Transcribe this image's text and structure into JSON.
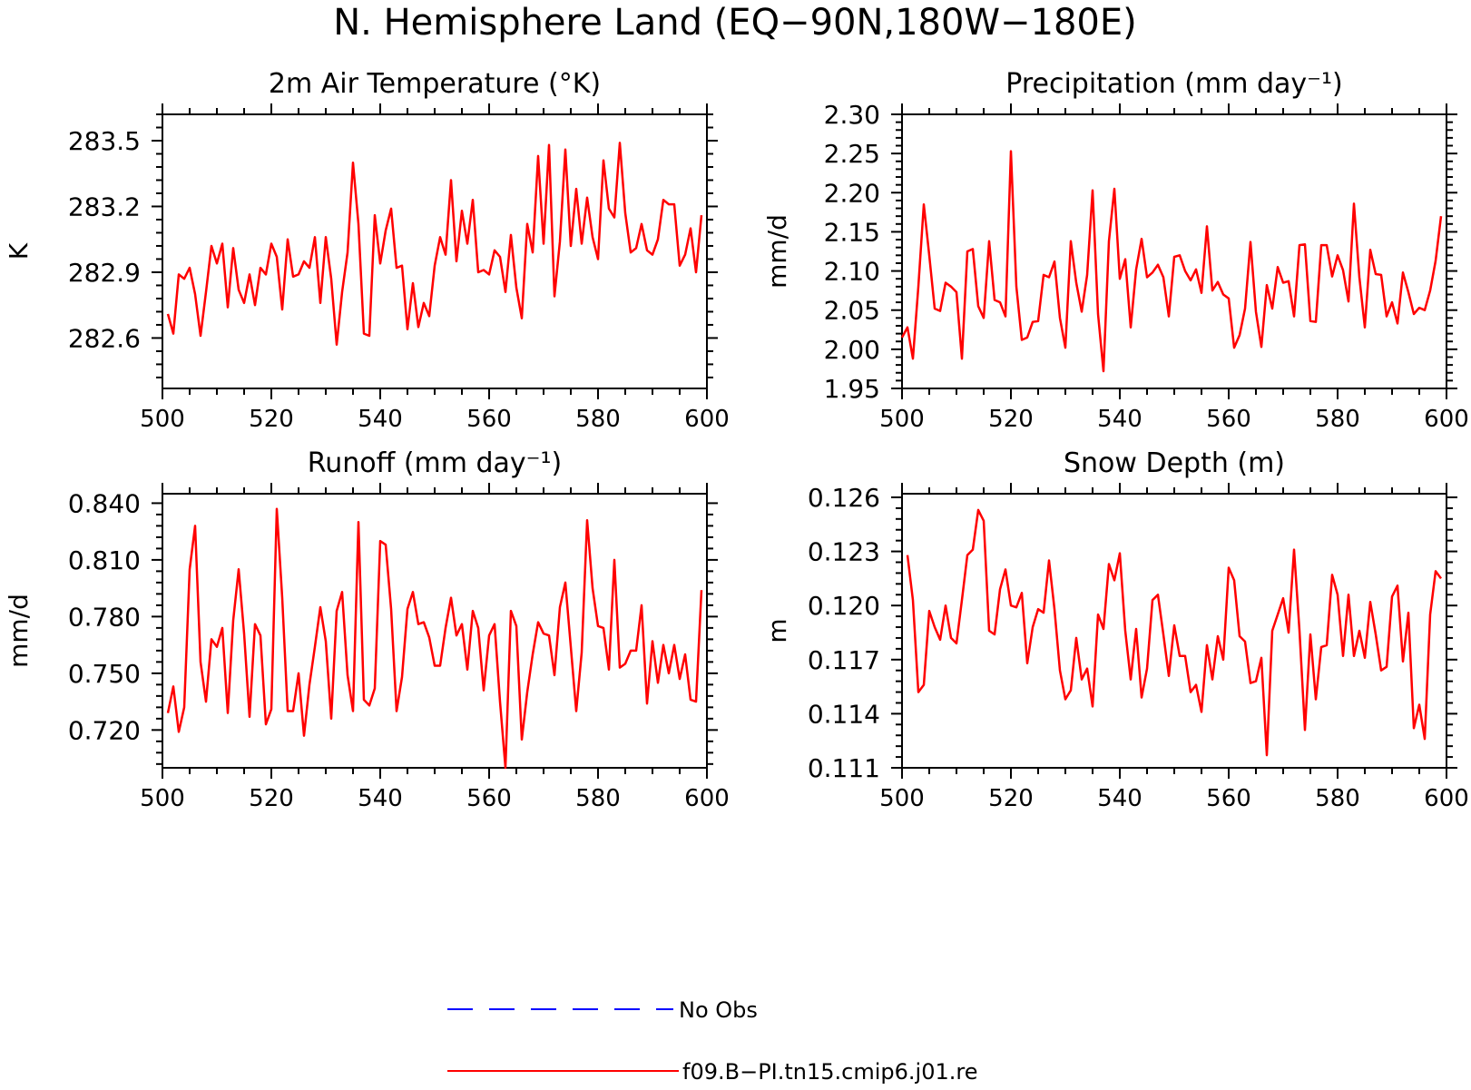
{
  "figure": {
    "title": "N. Hemisphere Land (EQ−90N,180W−180E)"
  },
  "legend": {
    "placement": "bottom-center",
    "entries": [
      {
        "label": "No Obs",
        "color": "#0000ff",
        "style": "dashed"
      },
      {
        "label": "f09.B−PI.tn15.cmip6.j01.re",
        "color": "#ff0000",
        "style": "solid"
      }
    ]
  },
  "colors": {
    "model_line": "#ff0000",
    "obs_line": "#0000ff",
    "frame": "#000000"
  },
  "chart_data": [
    {
      "type": "line",
      "title": "2m Air Temperature (°K)",
      "ylabel": "K",
      "xlim": [
        500,
        600
      ],
      "ylim": [
        282.37,
        283.62
      ],
      "xticks": [
        500,
        520,
        540,
        560,
        580,
        600
      ],
      "xtick_labels": [
        "500",
        "520",
        "540",
        "560",
        "580",
        "600"
      ],
      "yticks": [
        282.6,
        282.9,
        283.2,
        283.5
      ],
      "ytick_labels": [
        "282.6",
        "282.9",
        "283.2",
        "283.5"
      ],
      "x_start": 501,
      "series": [
        {
          "name": "f09.B−PI.tn15.cmip6.j01.re",
          "color": "#ff0000",
          "values": [
            282.71,
            282.62,
            282.89,
            282.87,
            282.92,
            282.8,
            282.61,
            282.81,
            283.02,
            282.94,
            283.03,
            282.74,
            283.01,
            282.82,
            282.76,
            282.89,
            282.75,
            282.92,
            282.89,
            283.03,
            282.97,
            282.73,
            283.05,
            282.88,
            282.89,
            282.95,
            282.92,
            283.06,
            282.76,
            283.06,
            282.87,
            282.57,
            282.81,
            282.99,
            283.4,
            283.12,
            282.62,
            282.61,
            283.16,
            282.94,
            283.09,
            283.19,
            282.92,
            282.93,
            282.64,
            282.85,
            282.65,
            282.76,
            282.7,
            282.93,
            283.06,
            282.98,
            283.32,
            282.95,
            283.18,
            283.03,
            283.23,
            282.9,
            282.91,
            282.89,
            283.0,
            282.97,
            282.81,
            283.07,
            282.83,
            282.69,
            283.12,
            282.99,
            283.43,
            283.03,
            283.48,
            282.79,
            283.04,
            283.46,
            283.02,
            283.28,
            283.03,
            283.24,
            283.06,
            282.96,
            283.41,
            283.19,
            283.15,
            283.49,
            283.17,
            282.99,
            283.01,
            283.12,
            283.0,
            282.98,
            283.05,
            283.23,
            283.21,
            283.21,
            282.93,
            282.98,
            283.1,
            282.9,
            283.16
          ]
        }
      ]
    },
    {
      "type": "line",
      "title": "Precipitation (mm day⁻¹)",
      "ylabel": "mm/d",
      "xlim": [
        500,
        600
      ],
      "ylim": [
        1.95,
        2.3
      ],
      "xticks": [
        500,
        520,
        540,
        560,
        580,
        600
      ],
      "xtick_labels": [
        "500",
        "520",
        "540",
        "560",
        "580",
        "600"
      ],
      "yticks": [
        1.95,
        2.0,
        2.05,
        2.1,
        2.15,
        2.2,
        2.25,
        2.3
      ],
      "ytick_labels": [
        "1.95",
        "2.00",
        "2.05",
        "2.10",
        "2.15",
        "2.20",
        "2.25",
        "2.30"
      ],
      "x_start": 500,
      "series": [
        {
          "name": "f09.B−PI.tn15.cmip6.j01.re",
          "color": "#ff0000",
          "values": [
            2.015,
            2.028,
            1.988,
            2.08,
            2.185,
            2.12,
            2.052,
            2.049,
            2.085,
            2.08,
            2.073,
            1.988,
            2.125,
            2.128,
            2.055,
            2.04,
            2.138,
            2.063,
            2.06,
            2.042,
            2.253,
            2.08,
            2.012,
            2.015,
            2.035,
            2.036,
            2.095,
            2.092,
            2.112,
            2.04,
            2.002,
            2.138,
            2.085,
            2.048,
            2.095,
            2.203,
            2.045,
            1.972,
            2.138,
            2.205,
            2.09,
            2.115,
            2.028,
            2.102,
            2.141,
            2.092,
            2.098,
            2.108,
            2.092,
            2.042,
            2.118,
            2.12,
            2.1,
            2.088,
            2.102,
            2.072,
            2.157,
            2.075,
            2.086,
            2.07,
            2.065,
            2.002,
            2.018,
            2.052,
            2.137,
            2.048,
            2.003,
            2.082,
            2.052,
            2.105,
            2.085,
            2.087,
            2.042,
            2.133,
            2.134,
            2.036,
            2.035,
            2.133,
            2.133,
            2.093,
            2.12,
            2.101,
            2.061,
            2.186,
            2.092,
            2.028,
            2.127,
            2.096,
            2.095,
            2.042,
            2.06,
            2.033,
            2.098,
            2.073,
            2.045,
            2.053,
            2.05,
            2.075,
            2.113,
            2.17
          ]
        }
      ]
    },
    {
      "type": "line",
      "title": "Runoff (mm day⁻¹)",
      "ylabel": "mm/d",
      "xlim": [
        500,
        600
      ],
      "ylim": [
        0.7,
        0.845
      ],
      "xticks": [
        500,
        520,
        540,
        560,
        580,
        600
      ],
      "xtick_labels": [
        "500",
        "520",
        "540",
        "560",
        "580",
        "600"
      ],
      "yticks": [
        0.72,
        0.75,
        0.78,
        0.81,
        0.84
      ],
      "ytick_labels": [
        "0.720",
        "0.750",
        "0.780",
        "0.810",
        "0.840"
      ],
      "x_start": 501,
      "series": [
        {
          "name": "f09.B−PI.tn15.cmip6.j01.re",
          "color": "#ff0000",
          "values": [
            0.729,
            0.743,
            0.719,
            0.732,
            0.805,
            0.828,
            0.756,
            0.735,
            0.768,
            0.764,
            0.774,
            0.729,
            0.778,
            0.805,
            0.771,
            0.727,
            0.776,
            0.77,
            0.723,
            0.731,
            0.837,
            0.79,
            0.73,
            0.73,
            0.75,
            0.717,
            0.744,
            0.764,
            0.785,
            0.767,
            0.726,
            0.783,
            0.793,
            0.749,
            0.73,
            0.83,
            0.736,
            0.733,
            0.742,
            0.82,
            0.818,
            0.784,
            0.73,
            0.748,
            0.784,
            0.793,
            0.776,
            0.777,
            0.769,
            0.754,
            0.754,
            0.774,
            0.79,
            0.77,
            0.776,
            0.752,
            0.783,
            0.774,
            0.741,
            0.77,
            0.776,
            0.735,
            0.7,
            0.783,
            0.775,
            0.715,
            0.74,
            0.76,
            0.777,
            0.771,
            0.77,
            0.749,
            0.785,
            0.798,
            0.764,
            0.73,
            0.761,
            0.831,
            0.795,
            0.775,
            0.774,
            0.752,
            0.81,
            0.753,
            0.755,
            0.762,
            0.762,
            0.786,
            0.734,
            0.767,
            0.745,
            0.765,
            0.75,
            0.765,
            0.747,
            0.76,
            0.736,
            0.735,
            0.794
          ]
        }
      ]
    },
    {
      "type": "line",
      "title": "Snow Depth (m)",
      "ylabel": "m",
      "xlim": [
        500,
        600
      ],
      "ylim": [
        0.111,
        0.1262
      ],
      "xticks": [
        500,
        520,
        540,
        560,
        580,
        600
      ],
      "xtick_labels": [
        "500",
        "520",
        "540",
        "560",
        "580",
        "600"
      ],
      "yticks": [
        0.111,
        0.114,
        0.117,
        0.12,
        0.123,
        0.126
      ],
      "ytick_labels": [
        "0.111",
        "0.114",
        "0.117",
        "0.120",
        "0.123",
        "0.126"
      ],
      "x_start": 501,
      "series": [
        {
          "name": "f09.B−PI.tn15.cmip6.j01.re",
          "color": "#ff0000",
          "values": [
            0.1228,
            0.1203,
            0.1152,
            0.1156,
            0.1197,
            0.1188,
            0.1181,
            0.12,
            0.1182,
            0.1179,
            0.1203,
            0.1228,
            0.1231,
            0.1253,
            0.1247,
            0.1186,
            0.1184,
            0.1209,
            0.122,
            0.12,
            0.1199,
            0.1207,
            0.1168,
            0.1188,
            0.1198,
            0.1196,
            0.1225,
            0.1198,
            0.1164,
            0.1148,
            0.1153,
            0.1182,
            0.1159,
            0.1165,
            0.1144,
            0.1195,
            0.1187,
            0.1223,
            0.1214,
            0.1229,
            0.1186,
            0.1159,
            0.1187,
            0.1149,
            0.1165,
            0.1203,
            0.1206,
            0.1184,
            0.1161,
            0.1189,
            0.1172,
            0.1172,
            0.1152,
            0.1156,
            0.1141,
            0.1178,
            0.1159,
            0.1183,
            0.117,
            0.1221,
            0.1214,
            0.1183,
            0.118,
            0.1157,
            0.1158,
            0.1171,
            0.1117,
            0.1186,
            0.1195,
            0.1204,
            0.1185,
            0.1231,
            0.1186,
            0.1131,
            0.1184,
            0.1148,
            0.1177,
            0.1178,
            0.1217,
            0.1206,
            0.1172,
            0.1206,
            0.1172,
            0.1186,
            0.1171,
            0.1202,
            0.1184,
            0.1164,
            0.1166,
            0.1205,
            0.1211,
            0.1169,
            0.1196,
            0.1132,
            0.1145,
            0.1126,
            0.1195,
            0.1219,
            0.1215
          ]
        }
      ]
    }
  ]
}
